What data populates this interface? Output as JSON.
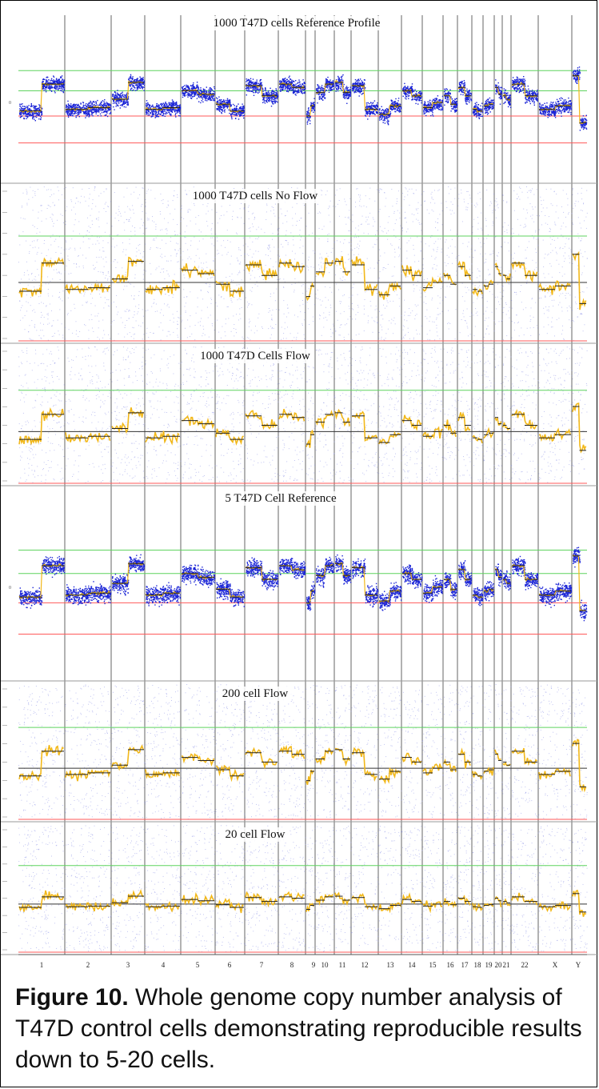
{
  "panels": [
    {
      "title": "1000 T47D cells Reference Profile",
      "style": "dense",
      "ytick_zero": "0"
    },
    {
      "title": "1000 T47D cells No Flow",
      "style": "sparse"
    },
    {
      "title": "1000 T47D Cells Flow",
      "style": "sparse"
    },
    {
      "title": "5 T47D Cell Reference",
      "style": "dense",
      "ytick_zero": "0"
    },
    {
      "title": "200 cell Flow",
      "style": "sparse"
    },
    {
      "title": "20 cell Flow",
      "style": "sparse"
    }
  ],
  "chromosomes": [
    "1",
    "2",
    "3",
    "4",
    "5",
    "6",
    "7",
    "8",
    "9",
    "10",
    "11",
    "12",
    "13",
    "14",
    "15",
    "16",
    "17",
    "18",
    "19",
    "20",
    "21",
    "22",
    "X",
    "Y"
  ],
  "colors": {
    "dense_points": "#1a24d6",
    "sparse_points": "#8d92e6",
    "segment": "#f2b81a",
    "upper_threshold": "#5fd35f",
    "lower_threshold": "#ff5a5a",
    "baseline": "#333333",
    "divider": "#666666"
  },
  "caption": {
    "label": "Figure 10.",
    "text": "  Whole genome copy number analysis  of T47D control cells demonstrating reproducible results down to 5-20 cells."
  }
}
